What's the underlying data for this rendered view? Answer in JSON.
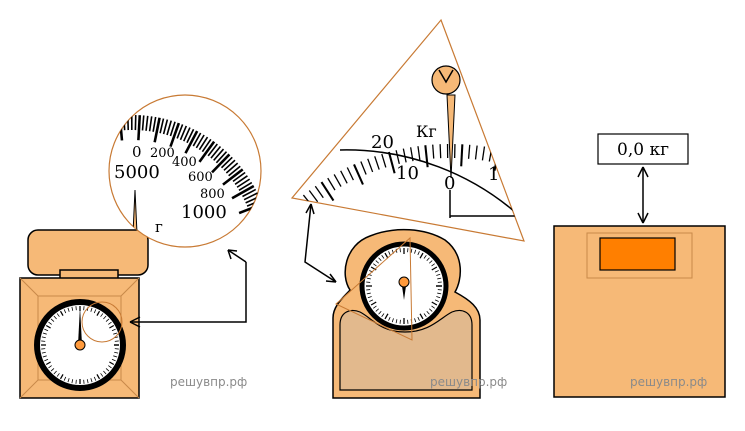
{
  "watermark": "решувпр.рф",
  "colors": {
    "body": "#f6b977",
    "body_dark": "#e9a45e",
    "outline": "#000000",
    "accent": "#ff7f00",
    "panel": "#e2b98d",
    "zoom_stroke": "#c87a34"
  },
  "scale1": {
    "name": "Кухонные весы",
    "dial_labels": [
      "0",
      "200",
      "400",
      "600",
      "800",
      "1000"
    ],
    "big_label": "5000",
    "unit": "г"
  },
  "scale2": {
    "name": "Напольные механические весы",
    "dial_labels": [
      "20",
      "10",
      "0",
      "1"
    ],
    "unit": "Кг"
  },
  "scale3": {
    "name": "Электронные весы",
    "display_value": "0,0 кг"
  }
}
